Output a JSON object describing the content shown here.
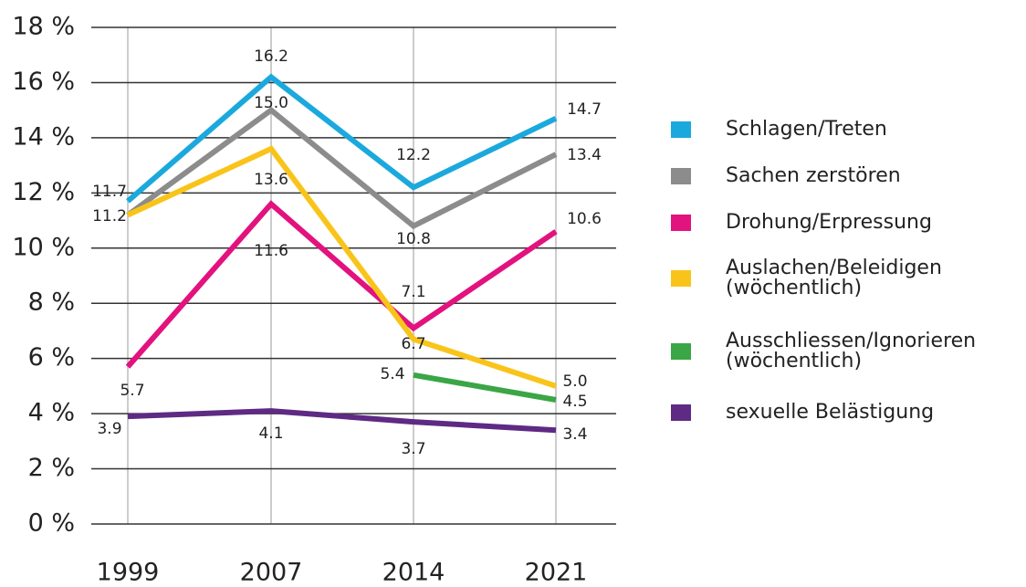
{
  "chart_data": {
    "type": "line",
    "categories": [
      "1999",
      "2007",
      "2014",
      "2021"
    ],
    "ylim": [
      0,
      18
    ],
    "yticks": [
      {
        "value": 0,
        "label": "0 %"
      },
      {
        "value": 2,
        "label": "2 %"
      },
      {
        "value": 4,
        "label": "4 %"
      },
      {
        "value": 6,
        "label": "6 %"
      },
      {
        "value": 8,
        "label": "8 %"
      },
      {
        "value": 10,
        "label": "10 %"
      },
      {
        "value": 12,
        "label": "12 %"
      },
      {
        "value": 14,
        "label": "14 %"
      },
      {
        "value": 16,
        "label": "16 %"
      },
      {
        "value": 18,
        "label": "18 %"
      }
    ],
    "grid": true,
    "legend": "right",
    "series": [
      {
        "name": "Schlagen/Treten",
        "color": "#1ba9dd",
        "values": [
          11.7,
          16.2,
          12.2,
          14.7
        ],
        "value_labels": [
          "11.7",
          "16.2",
          "12.2",
          "14.7"
        ]
      },
      {
        "name": "Sachen zerstören",
        "color": "#8c8c8c",
        "values": [
          11.2,
          15.0,
          10.8,
          13.4
        ],
        "value_labels": [
          "11.2",
          "15.0",
          "10.8",
          "13.4"
        ]
      },
      {
        "name": "Drohung/Erpressung",
        "color": "#e2127e",
        "values": [
          5.7,
          11.6,
          7.1,
          10.6
        ],
        "value_labels": [
          "5.7",
          "11.6",
          "7.1",
          "10.6"
        ]
      },
      {
        "name": "Auslachen/Beleidigen\n(wöchentlich)",
        "color": "#f9c41a",
        "values": [
          11.2,
          13.6,
          6.7,
          5.0
        ],
        "value_labels": [
          null,
          "13.6",
          "6.7",
          "5.0"
        ]
      },
      {
        "name": "Ausschliessen/Ignorieren\n(wöchentlich)",
        "color": "#3aa645",
        "values": [
          null,
          null,
          5.4,
          4.5
        ],
        "value_labels": [
          null,
          null,
          "5.4",
          "4.5"
        ]
      },
      {
        "name": "sexuelle Belästigung",
        "color": "#5e2a84",
        "values": [
          3.9,
          4.1,
          3.7,
          3.4
        ],
        "value_labels": [
          "3.9",
          "4.1",
          "3.7",
          "3.4"
        ]
      }
    ]
  }
}
